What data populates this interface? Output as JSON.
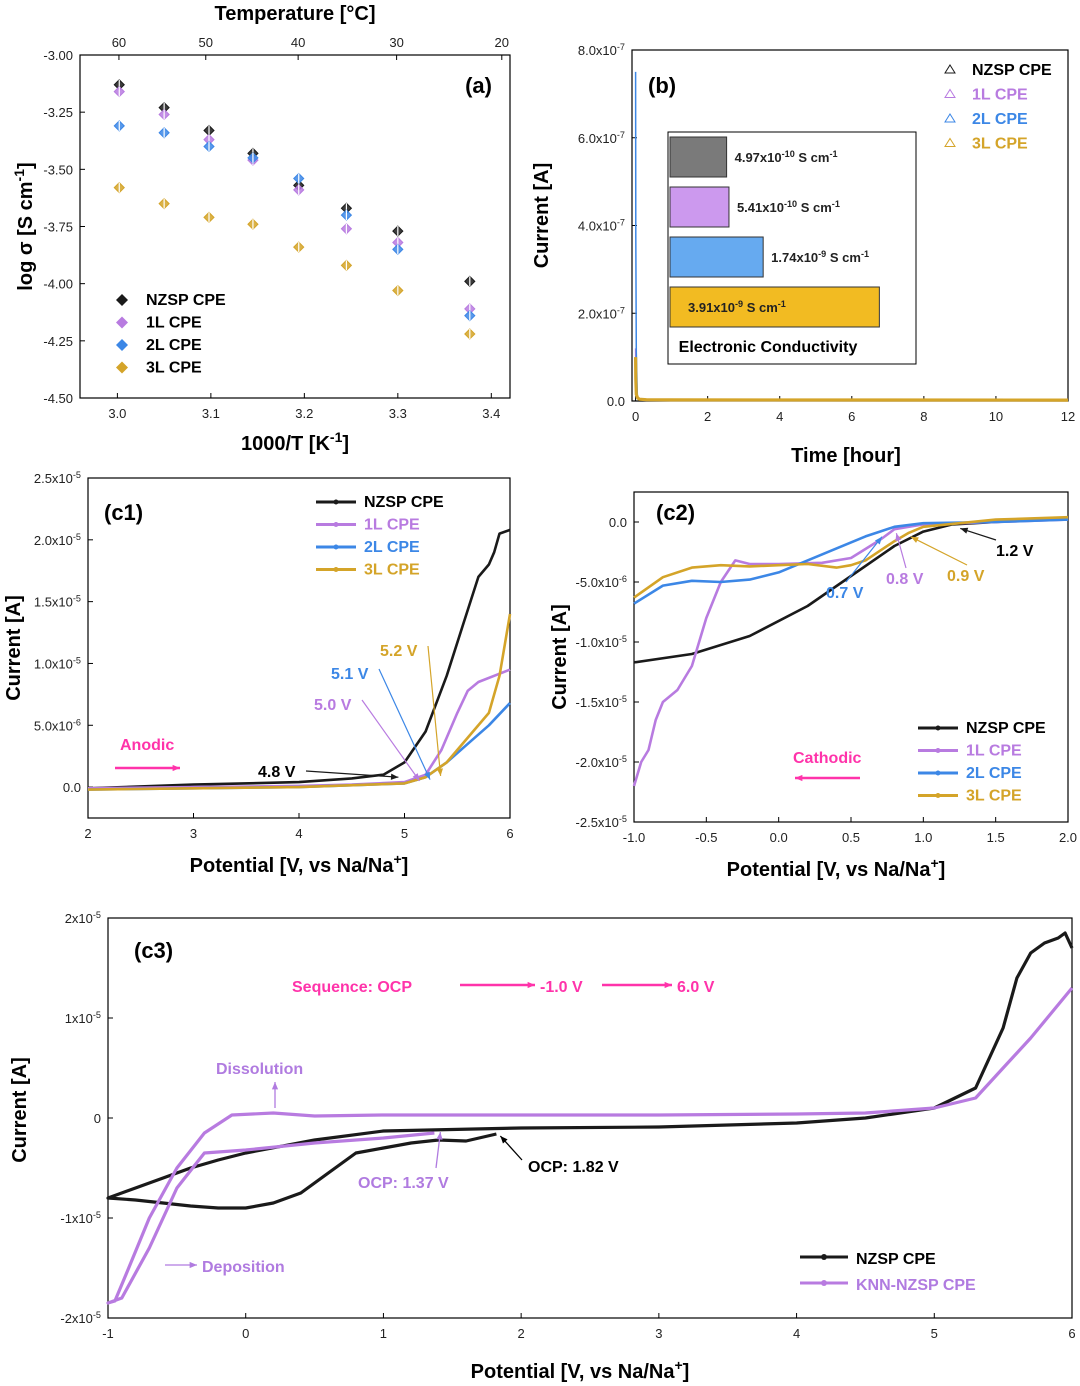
{
  "colors": {
    "nzsp": "#1a1a1a",
    "l1": "#b87be0",
    "l2": "#3c87e6",
    "l3": "#d4a429",
    "nzsp_bar": "#7a7a7a",
    "l1_bar": "#cc99ee",
    "l2_bar": "#66aaf0",
    "l3_bar": "#f2bb22",
    "magenta": "#ff33aa",
    "purple": "#b07be0"
  },
  "chart_data": [
    {
      "id": "a",
      "panel_label": "(a)",
      "type": "scatter",
      "xlabel": "1000/T [K",
      "xlabel_sup": "-1",
      "xlabel_end": "]",
      "ylabel": "log σ [S cm",
      "ylabel_sup": "-1",
      "ylabel_end": "]",
      "top_label": "Temperature [°C]",
      "xlim": [
        2.96,
        3.42
      ],
      "ylim": [
        -4.5,
        -3.0
      ],
      "x_ticks": [
        "3.0",
        "3.1",
        "3.2",
        "3.3",
        "3.4"
      ],
      "y_ticks": [
        "-3.00",
        "-3.25",
        "-3.50",
        "-3.75",
        "-4.00",
        "-4.25",
        "-4.50"
      ],
      "top_ticks": [
        "60",
        "50",
        "40",
        "30",
        "20"
      ],
      "x": [
        3.002,
        3.05,
        3.098,
        3.145,
        3.194,
        3.245,
        3.3,
        3.377
      ],
      "series": [
        {
          "name": "NZSP CPE",
          "color": "nzsp",
          "values": [
            -3.13,
            -3.23,
            -3.33,
            -3.43,
            -3.57,
            -3.67,
            -3.77,
            -3.99
          ]
        },
        {
          "name": "1L CPE",
          "color": "l1",
          "values": [
            -3.16,
            -3.26,
            -3.37,
            -3.46,
            -3.59,
            -3.76,
            -3.82,
            -4.11
          ]
        },
        {
          "name": "2L CPE",
          "color": "l2",
          "values": [
            -3.31,
            -3.34,
            -3.4,
            -3.45,
            -3.54,
            -3.7,
            -3.85,
            -4.14
          ]
        },
        {
          "name": "3L CPE",
          "color": "l3",
          "values": [
            -3.58,
            -3.65,
            -3.71,
            -3.74,
            -3.84,
            -3.92,
            -4.03,
            -4.22
          ]
        }
      ]
    },
    {
      "id": "b",
      "panel_label": "(b)",
      "type": "line",
      "xlabel": "Time [hour]",
      "ylabel": "Current [A]",
      "xlim": [
        -0.1,
        12
      ],
      "ylim": [
        0,
        8e-07
      ],
      "x_ticks": [
        "0",
        "2",
        "4",
        "6",
        "8",
        "10",
        "12"
      ],
      "y_ticks": [
        {
          "m": "0.0",
          "e": ""
        },
        {
          "m": "2.0x10",
          "e": "-7"
        },
        {
          "m": "4.0x10",
          "e": "-7"
        },
        {
          "m": "6.0x10",
          "e": "-7"
        },
        {
          "m": "8.0x10",
          "e": "-7"
        }
      ],
      "legend": [
        "NZSP CPE",
        "1L CPE",
        "2L CPE",
        "3L CPE"
      ],
      "inset": {
        "title": "Electronic Conductivity",
        "bars": [
          {
            "name": "NZSP CPE",
            "color": "nzsp_bar",
            "value": 4.97e-10,
            "label": "4.97x10",
            "exp": "-10",
            "unit": " S cm",
            "unit_exp": "-1"
          },
          {
            "name": "1L CPE",
            "color": "l1_bar",
            "value": 5.41e-10,
            "label": "5.41x10",
            "exp": "-10",
            "unit": " S cm",
            "unit_exp": "-1"
          },
          {
            "name": "2L CPE",
            "color": "l2_bar",
            "value": 1.74e-09,
            "label": "1.74x10",
            "exp": "-9",
            "unit": " S cm",
            "unit_exp": "-1"
          },
          {
            "name": "3L CPE",
            "color": "l3_bar",
            "value": 3.91e-09,
            "label": "3.91x10",
            "exp": "-9",
            "unit": " S cm",
            "unit_exp": "-1"
          }
        ]
      }
    },
    {
      "id": "c1",
      "panel_label": "(c1)",
      "type": "line",
      "xlabel": "Potential [V, vs Na/Na",
      "xlabel_sup": "+",
      "xlabel_end": "]",
      "ylabel": "Current [A]",
      "xlim": [
        2,
        6
      ],
      "ylim": [
        -2.5e-06,
        2.5e-05
      ],
      "x_ticks": [
        "2",
        "3",
        "4",
        "5",
        "6"
      ],
      "y_ticks": [
        {
          "m": "0.0",
          "e": ""
        },
        {
          "m": "5.0x10",
          "e": "-6"
        },
        {
          "m": "1.0x10",
          "e": "-5"
        },
        {
          "m": "1.5x10",
          "e": "-5"
        },
        {
          "m": "2.0x10",
          "e": "-5"
        },
        {
          "m": "2.5x10",
          "e": "-5"
        }
      ],
      "legend": [
        "NZSP CPE",
        "1L CPE",
        "2L CPE",
        "3L CPE"
      ],
      "direction": "Anodic",
      "annotations": [
        {
          "text": "4.8 V",
          "color": "nzsp",
          "at_v": 4.8
        },
        {
          "text": "5.0 V",
          "color": "l1",
          "at_v": 5.0
        },
        {
          "text": "5.1 V",
          "color": "l2",
          "at_v": 5.1
        },
        {
          "text": "5.2 V",
          "color": "l3",
          "at_v": 5.2
        }
      ],
      "series": [
        {
          "name": "NZSP CPE",
          "color": "nzsp",
          "x": [
            2,
            3,
            4,
            4.5,
            4.8,
            5.0,
            5.2,
            5.4,
            5.55,
            5.7,
            5.8,
            5.85,
            5.9,
            6.0
          ],
          "values": [
            -1e-07,
            2e-07,
            4e-07,
            7e-07,
            1e-06,
            2e-06,
            4.5e-06,
            9e-06,
            1.3e-05,
            1.7e-05,
            1.8e-05,
            1.9e-05,
            2.05e-05,
            2.08e-05
          ]
        },
        {
          "name": "1L CPE",
          "color": "l1",
          "x": [
            2,
            3,
            4,
            4.5,
            5.0,
            5.2,
            5.35,
            5.5,
            5.6,
            5.7,
            6.0
          ],
          "values": [
            -1e-07,
            0.0,
            1e-07,
            2e-07,
            4e-07,
            1e-06,
            3e-06,
            6e-06,
            7.8e-06,
            8.5e-06,
            9.5e-06
          ]
        },
        {
          "name": "2L CPE",
          "color": "l2",
          "x": [
            2,
            3,
            4,
            5.0,
            5.2,
            5.4,
            5.6,
            5.8,
            6.0
          ],
          "values": [
            -2e-07,
            -1e-07,
            0.0,
            3e-07,
            8e-07,
            2e-06,
            3.5e-06,
            5e-06,
            6.8e-06
          ]
        },
        {
          "name": "3L CPE",
          "color": "l3",
          "x": [
            2,
            3,
            4,
            5.0,
            5.2,
            5.4,
            5.6,
            5.8,
            5.9,
            6.0
          ],
          "values": [
            -2e-07,
            -1e-07,
            0.0,
            3e-07,
            8e-07,
            2e-06,
            4e-06,
            6e-06,
            9e-06,
            1.4e-05
          ]
        }
      ]
    },
    {
      "id": "c2",
      "panel_label": "(c2)",
      "type": "line",
      "xlabel": "Potential [V, vs Na/Na",
      "xlabel_sup": "+",
      "xlabel_end": "]",
      "ylabel": "Current [A]",
      "xlim": [
        -1,
        2
      ],
      "ylim": [
        -2.5e-05,
        2.5e-06
      ],
      "x_ticks": [
        "-1.0",
        "-0.5",
        "0.0",
        "0.5",
        "1.0",
        "1.5",
        "2.0"
      ],
      "y_ticks": [
        {
          "m": "0.0",
          "e": ""
        },
        {
          "m": "-5.0x10",
          "e": "-6"
        },
        {
          "m": "-1.0x10",
          "e": "-5"
        },
        {
          "m": "-1.5x10",
          "e": "-5"
        },
        {
          "m": "-2.0x10",
          "e": "-5"
        },
        {
          "m": "-2.5x10",
          "e": "-5"
        }
      ],
      "legend": [
        "NZSP CPE",
        "1L CPE",
        "2L CPE",
        "3L CPE"
      ],
      "direction": "Cathodic",
      "annotations": [
        {
          "text": "0.7 V",
          "color": "l2",
          "at_v": 0.7
        },
        {
          "text": "0.8 V",
          "color": "l1",
          "at_v": 0.8
        },
        {
          "text": "0.9 V",
          "color": "l3",
          "at_v": 0.9
        },
        {
          "text": "1.2 V",
          "color": "nzsp",
          "at_v": 1.2
        }
      ],
      "series": [
        {
          "name": "NZSP CPE",
          "color": "nzsp",
          "x": [
            -1.0,
            -0.6,
            -0.2,
            0.2,
            0.5,
            0.8,
            1.0,
            1.2,
            1.5,
            2.0
          ],
          "values": [
            -1.17e-05,
            -1.1e-05,
            -9.5e-06,
            -7e-06,
            -4.5e-06,
            -2e-06,
            -8e-07,
            -2e-07,
            0.0,
            3e-07
          ]
        },
        {
          "name": "1L CPE",
          "color": "l1",
          "x": [
            -1.0,
            -0.95,
            -0.9,
            -0.85,
            -0.8,
            -0.7,
            -0.6,
            -0.5,
            -0.4,
            -0.3,
            -0.2,
            0.0,
            0.3,
            0.5,
            0.7,
            0.8,
            1.0,
            1.5,
            2.0
          ],
          "values": [
            -2.2e-05,
            -2e-05,
            -1.9e-05,
            -1.65e-05,
            -1.5e-05,
            -1.4e-05,
            -1.2e-05,
            -8e-06,
            -5e-06,
            -3.2e-06,
            -3.5e-06,
            -3.5e-06,
            -3.4e-06,
            -3e-06,
            -1.5e-06,
            -6e-07,
            -2e-07,
            0.0,
            2e-07
          ]
        },
        {
          "name": "2L CPE",
          "color": "l2",
          "x": [
            -1.0,
            -0.8,
            -0.6,
            -0.4,
            -0.2,
            0.0,
            0.2,
            0.4,
            0.6,
            0.7,
            0.8,
            1.0,
            1.5,
            2.0
          ],
          "values": [
            -6.8e-06,
            -5.3e-06,
            -4.9e-06,
            -5e-06,
            -4.8e-06,
            -4.2e-06,
            -3.2e-06,
            -2.2e-06,
            -1.2e-06,
            -8e-07,
            -4e-07,
            -1e-07,
            0.0,
            2e-07
          ]
        },
        {
          "name": "3L CPE",
          "color": "l3",
          "x": [
            -1.0,
            -0.8,
            -0.6,
            -0.4,
            -0.2,
            0.0,
            0.2,
            0.4,
            0.5,
            0.6,
            0.7,
            0.8,
            0.9,
            1.0,
            1.5,
            2.0
          ],
          "values": [
            -6.3e-06,
            -4.6e-06,
            -3.8e-06,
            -3.6e-06,
            -3.7e-06,
            -3.6e-06,
            -3.5e-06,
            -3.8e-06,
            -3.6e-06,
            -3.2e-06,
            -2.4e-06,
            -1.6e-06,
            -9e-07,
            -4e-07,
            2e-07,
            4e-07
          ]
        }
      ]
    },
    {
      "id": "c3",
      "panel_label": "(c3)",
      "type": "line",
      "xlabel": "Potential [V, vs Na/Na",
      "xlabel_sup": "+",
      "xlabel_end": "]",
      "ylabel": "Current [A]",
      "xlim": [
        -1,
        6
      ],
      "ylim": [
        -2e-05,
        2e-05
      ],
      "x_ticks": [
        "-1",
        "0",
        "1",
        "2",
        "3",
        "4",
        "5",
        "6"
      ],
      "y_ticks": [
        {
          "m": "-2x10",
          "e": "-5"
        },
        {
          "m": "-1x10",
          "e": "-5"
        },
        {
          "m": "0",
          "e": ""
        },
        {
          "m": "1x10",
          "e": "-5"
        },
        {
          "m": "2x10",
          "e": "-5"
        }
      ],
      "legend": [
        "NZSP CPE",
        "KNN-NZSP CPE"
      ],
      "sequence": {
        "prefix": "Sequence: OCP",
        "step1": "-1.0 V",
        "step2": "6.0 V"
      },
      "labels": {
        "dissolution": "Dissolution",
        "deposition": "Deposition",
        "ocp_knn": "OCP: 1.37 V",
        "ocp_nzsp": "OCP: 1.82 V"
      },
      "series": [
        {
          "name": "NZSP CPE",
          "color": "nzsp",
          "x": [
            1.82,
            1.6,
            1.4,
            1.2,
            1.0,
            0.8,
            0.6,
            0.4,
            0.2,
            0.0,
            -0.2,
            -0.4,
            -0.6,
            -0.8,
            -1.0,
            -0.8,
            -0.6,
            -0.4,
            -0.2,
            0.0,
            0.5,
            1.0,
            2.0,
            3.0,
            4.0,
            4.5,
            5.0,
            5.3,
            5.5,
            5.6,
            5.7,
            5.8,
            5.9,
            5.95,
            6.0
          ],
          "values": [
            -1.6e-06,
            -2.3e-06,
            -2.2e-06,
            -2.5e-06,
            -3e-06,
            -3.5e-06,
            -5.5e-06,
            -7.5e-06,
            -8.5e-06,
            -9e-06,
            -9e-06,
            -8.8e-06,
            -8.5e-06,
            -8.2e-06,
            -8e-06,
            -7e-06,
            -6e-06,
            -5e-06,
            -4.2e-06,
            -3.5e-06,
            -2.2e-06,
            -1.3e-06,
            -1e-06,
            -9e-07,
            -5e-07,
            0.0,
            1e-06,
            3e-06,
            9e-06,
            1.4e-05,
            1.65e-05,
            1.75e-05,
            1.8e-05,
            1.85e-05,
            1.7e-05
          ]
        },
        {
          "name": "KNN-NZSP CPE",
          "color": "l1",
          "x": [
            1.37,
            1.0,
            0.5,
            0.0,
            -0.3,
            -0.5,
            -0.7,
            -0.9,
            -1.0,
            -0.95,
            -0.85,
            -0.7,
            -0.5,
            -0.3,
            -0.1,
            0.2,
            0.5,
            1.0,
            2.0,
            3.0,
            4.0,
            4.5,
            5.0,
            5.3,
            5.5,
            5.7,
            6.0
          ],
          "values": [
            -1.5e-06,
            -2e-06,
            -2.5e-06,
            -3.2e-06,
            -3.5e-06,
            -7e-06,
            -1.3e-05,
            -1.8e-05,
            -1.85e-05,
            -1.83e-05,
            -1.5e-05,
            -1e-05,
            -5e-06,
            -1.5e-06,
            3e-07,
            5e-07,
            2e-07,
            3e-07,
            3e-07,
            3e-07,
            4e-07,
            5e-07,
            1e-06,
            2e-06,
            5e-06,
            8e-06,
            1.3e-05
          ]
        }
      ]
    }
  ]
}
